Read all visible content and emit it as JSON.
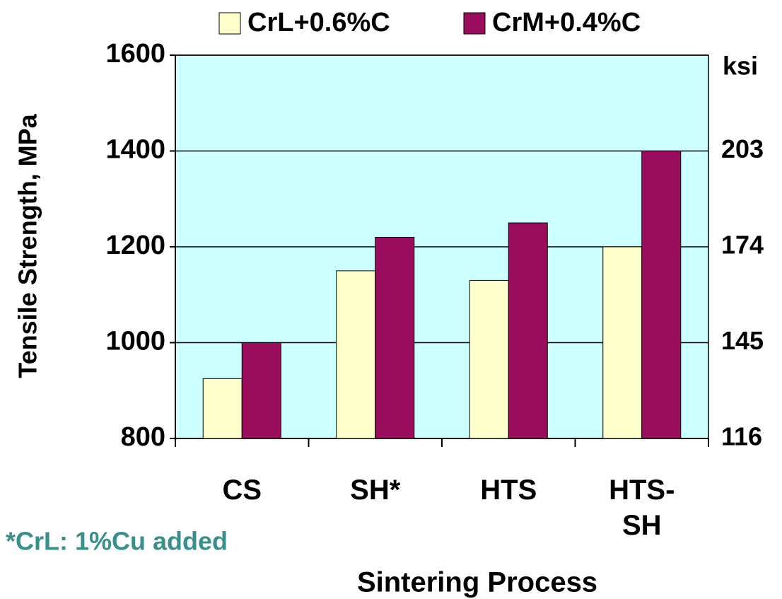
{
  "chart_data": {
    "type": "bar",
    "y_label": "Tensile Strength, MPa",
    "x_label": "Sintering Process",
    "y2_label": "ksi",
    "annotation": "*CrL: 1%Cu added",
    "categories": [
      "CS",
      "SH*",
      "HTS",
      "HTS-SH"
    ],
    "series": [
      {
        "name": "CrL+0.6%C",
        "color": "#ffffcc",
        "values": [
          925,
          1150,
          1130,
          1200
        ]
      },
      {
        "name": "CrM+0.4%C",
        "color": "#990d5c",
        "values": [
          1000,
          1220,
          1250,
          1400
        ]
      }
    ],
    "ylim": [
      800,
      1600
    ],
    "yticks": [
      800,
      1000,
      1200,
      1400,
      1600
    ],
    "y2lim": [
      116,
      232
    ],
    "y2ticks": [
      116,
      145,
      174,
      203
    ],
    "grid": true,
    "background": "#ccffff",
    "legend": "top",
    "annotation_color": "#3a8f8a"
  }
}
